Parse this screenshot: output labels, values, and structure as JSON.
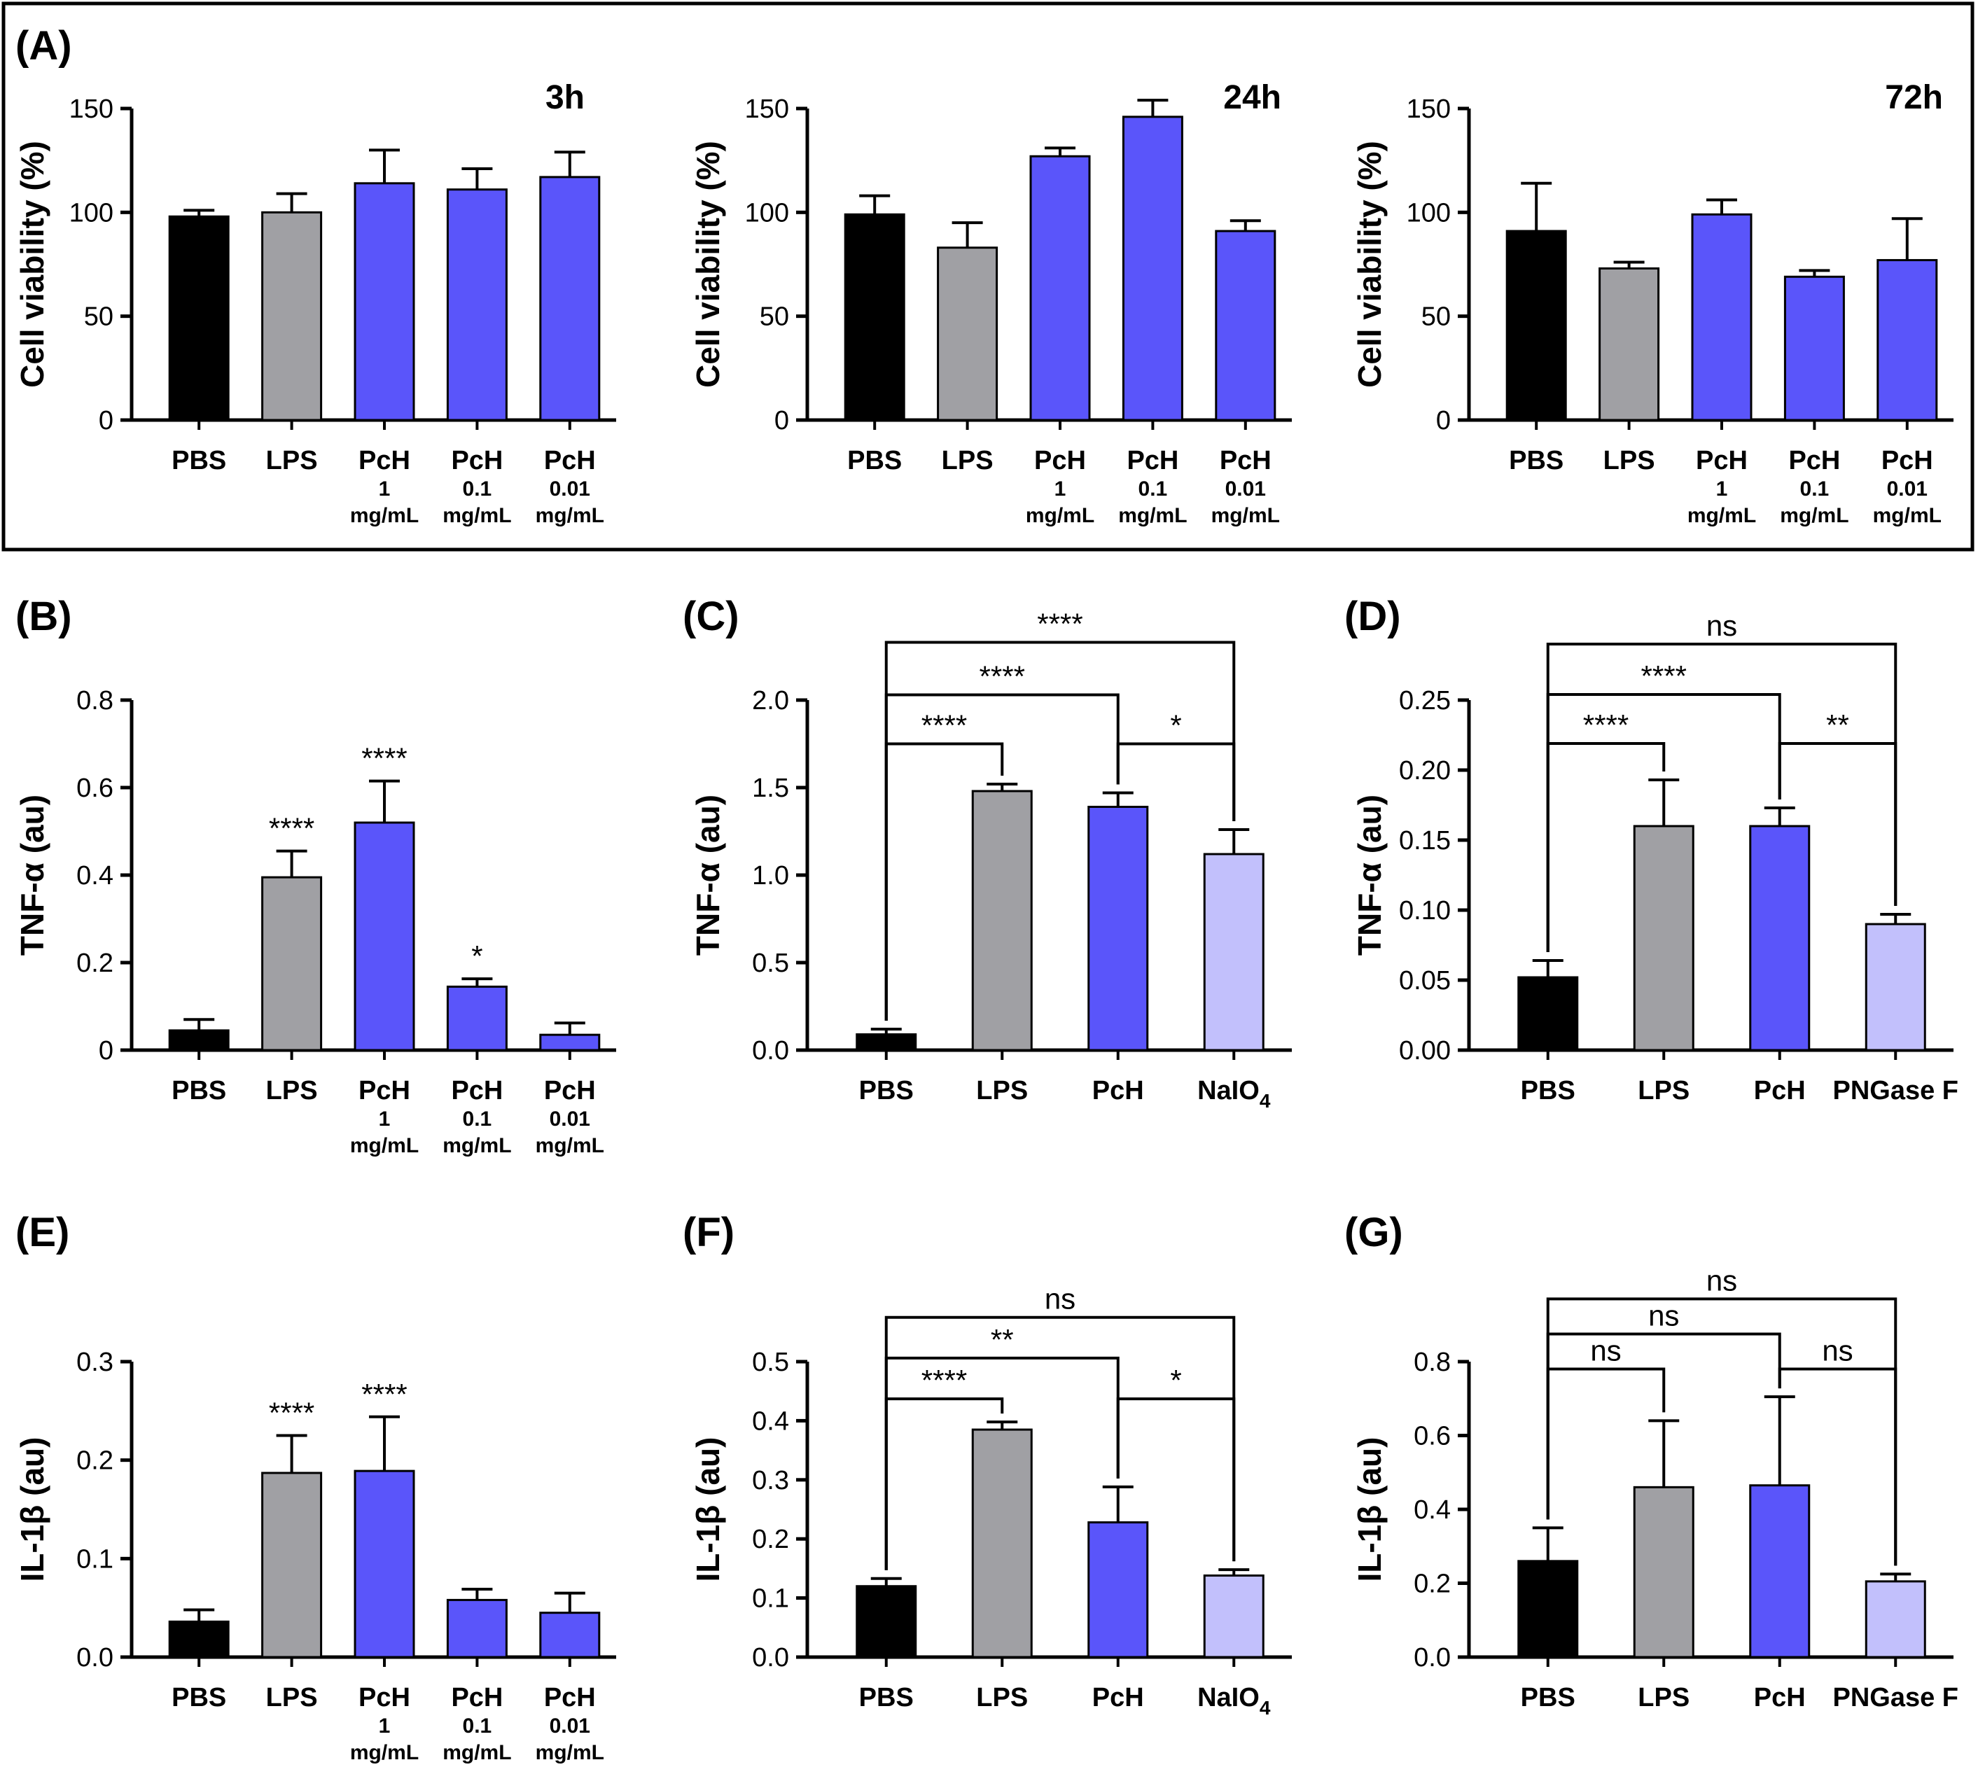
{
  "colors": {
    "PBS": "#000000",
    "LPS": "#a0a0a4",
    "PcH": "#5a55fa",
    "light": "#c2c0fc",
    "axis": "#000000"
  },
  "chart_data": [
    {
      "id": "A1",
      "panel_label": "(A)",
      "type": "bar",
      "time_label": "3h",
      "ylabel": "Cell viability (%)",
      "ylim": [
        0,
        150
      ],
      "yticks": [
        "0",
        "50",
        "100",
        "150"
      ],
      "categories": [
        {
          "lines": [
            "PBS"
          ],
          "sub": [
            "",
            ""
          ],
          "color": "PBS",
          "value": 98,
          "err": 3
        },
        {
          "lines": [
            "LPS"
          ],
          "sub": [
            "",
            ""
          ],
          "color": "LPS",
          "value": 100,
          "err": 9
        },
        {
          "lines": [
            "PcH"
          ],
          "sub": [
            "1",
            "mg/mL"
          ],
          "color": "PcH",
          "value": 114,
          "err": 16
        },
        {
          "lines": [
            "PcH"
          ],
          "sub": [
            "0.1",
            "mg/mL"
          ],
          "color": "PcH",
          "value": 111,
          "err": 10
        },
        {
          "lines": [
            "PcH"
          ],
          "sub": [
            "0.01",
            "mg/mL"
          ],
          "color": "PcH",
          "value": 117,
          "err": 12
        }
      ],
      "stars": [],
      "brackets": []
    },
    {
      "id": "A2",
      "panel_label": "",
      "type": "bar",
      "time_label": "24h",
      "ylabel": "Cell viability (%)",
      "ylim": [
        0,
        150
      ],
      "yticks": [
        "0",
        "50",
        "100",
        "150"
      ],
      "categories": [
        {
          "lines": [
            "PBS"
          ],
          "sub": [
            "",
            ""
          ],
          "color": "PBS",
          "value": 99,
          "err": 9
        },
        {
          "lines": [
            "LPS"
          ],
          "sub": [
            "",
            ""
          ],
          "color": "LPS",
          "value": 83,
          "err": 12
        },
        {
          "lines": [
            "PcH"
          ],
          "sub": [
            "1",
            "mg/mL"
          ],
          "color": "PcH",
          "value": 127,
          "err": 4
        },
        {
          "lines": [
            "PcH"
          ],
          "sub": [
            "0.1",
            "mg/mL"
          ],
          "color": "PcH",
          "value": 146,
          "err": 8
        },
        {
          "lines": [
            "PcH"
          ],
          "sub": [
            "0.01",
            "mg/mL"
          ],
          "color": "PcH",
          "value": 91,
          "err": 5
        }
      ],
      "stars": [],
      "brackets": []
    },
    {
      "id": "A3",
      "panel_label": "",
      "type": "bar",
      "time_label": "72h",
      "ylabel": "Cell viability (%)",
      "ylim": [
        0,
        150
      ],
      "yticks": [
        "0",
        "50",
        "100",
        "150"
      ],
      "categories": [
        {
          "lines": [
            "PBS"
          ],
          "sub": [
            "",
            ""
          ],
          "color": "PBS",
          "value": 91,
          "err": 23
        },
        {
          "lines": [
            "LPS"
          ],
          "sub": [
            "",
            ""
          ],
          "color": "LPS",
          "value": 73,
          "err": 3
        },
        {
          "lines": [
            "PcH"
          ],
          "sub": [
            "1",
            "mg/mL"
          ],
          "color": "PcH",
          "value": 99,
          "err": 7
        },
        {
          "lines": [
            "PcH"
          ],
          "sub": [
            "0.1",
            "mg/mL"
          ],
          "color": "PcH",
          "value": 69,
          "err": 3
        },
        {
          "lines": [
            "PcH"
          ],
          "sub": [
            "0.01",
            "mg/mL"
          ],
          "color": "PcH",
          "value": 77,
          "err": 20
        }
      ],
      "stars": [],
      "brackets": []
    },
    {
      "id": "B",
      "panel_label": "(B)",
      "type": "bar",
      "time_label": "",
      "ylabel": "TNF-α (au)",
      "ylim": [
        0,
        0.8
      ],
      "yticks": [
        "0",
        "0.2",
        "0.4",
        "0.6",
        "0.8"
      ],
      "categories": [
        {
          "lines": [
            "PBS"
          ],
          "sub": [
            "",
            ""
          ],
          "color": "PBS",
          "value": 0.045,
          "err": 0.025
        },
        {
          "lines": [
            "LPS"
          ],
          "sub": [
            "",
            ""
          ],
          "color": "LPS",
          "value": 0.395,
          "err": 0.06
        },
        {
          "lines": [
            "PcH"
          ],
          "sub": [
            "1",
            "mg/mL"
          ],
          "color": "PcH",
          "value": 0.52,
          "err": 0.095
        },
        {
          "lines": [
            "PcH"
          ],
          "sub": [
            "0.1",
            "mg/mL"
          ],
          "color": "PcH",
          "value": 0.145,
          "err": 0.018
        },
        {
          "lines": [
            "PcH"
          ],
          "sub": [
            "0.01",
            "mg/mL"
          ],
          "color": "PcH",
          "value": 0.035,
          "err": 0.027
        }
      ],
      "stars": [
        {
          "bar": 1,
          "text": "****"
        },
        {
          "bar": 2,
          "text": "****"
        },
        {
          "bar": 3,
          "text": "*"
        }
      ],
      "brackets": []
    },
    {
      "id": "C",
      "panel_label": "(C)",
      "type": "bar",
      "time_label": "",
      "ylabel": "TNF-α (au)",
      "ylim": [
        0,
        2.0
      ],
      "yticks": [
        "0.0",
        "0.5",
        "1.0",
        "1.5",
        "2.0"
      ],
      "categories": [
        {
          "lines": [
            "PBS"
          ],
          "sub": [
            "",
            ""
          ],
          "color": "PBS",
          "value": 0.09,
          "err": 0.03
        },
        {
          "lines": [
            "LPS"
          ],
          "sub": [
            "",
            ""
          ],
          "color": "LPS",
          "value": 1.48,
          "err": 0.04
        },
        {
          "lines": [
            "PcH"
          ],
          "sub": [
            "",
            ""
          ],
          "color": "PcH",
          "value": 1.39,
          "err": 0.08
        },
        {
          "lines": [
            "NaIO",
            "4"
          ],
          "sub": [
            "",
            ""
          ],
          "color": "light",
          "value": 1.12,
          "err": 0.14
        }
      ],
      "stars": [],
      "brackets": [
        {
          "from": 0,
          "to": 1,
          "text": "****",
          "level": 1.75
        },
        {
          "from": 2,
          "to": 3,
          "text": "*",
          "level": 1.75
        },
        {
          "from": 0,
          "to": 2,
          "text": "****",
          "level": 2.03
        },
        {
          "from": 0,
          "to": 3,
          "text": "****",
          "level": 2.33
        }
      ]
    },
    {
      "id": "D",
      "panel_label": "(D)",
      "type": "bar",
      "time_label": "",
      "ylabel": "TNF-α (au)",
      "ylim": [
        0,
        0.25
      ],
      "yticks": [
        "0.00",
        "0.05",
        "0.10",
        "0.15",
        "0.20",
        "0.25"
      ],
      "categories": [
        {
          "lines": [
            "PBS"
          ],
          "sub": [
            "",
            ""
          ],
          "color": "PBS",
          "value": 0.052,
          "err": 0.012
        },
        {
          "lines": [
            "LPS"
          ],
          "sub": [
            "",
            ""
          ],
          "color": "LPS",
          "value": 0.16,
          "err": 0.033
        },
        {
          "lines": [
            "PcH"
          ],
          "sub": [
            "",
            ""
          ],
          "color": "PcH",
          "value": 0.16,
          "err": 0.013
        },
        {
          "lines": [
            "PNGase F"
          ],
          "sub": [
            "",
            ""
          ],
          "color": "light",
          "value": 0.09,
          "err": 0.007
        }
      ],
      "stars": [],
      "brackets": [
        {
          "from": 0,
          "to": 1,
          "text": "****",
          "level": 0.219
        },
        {
          "from": 2,
          "to": 3,
          "text": "**",
          "level": 0.219
        },
        {
          "from": 0,
          "to": 2,
          "text": "****",
          "level": 0.254
        },
        {
          "from": 0,
          "to": 3,
          "text": "ns",
          "level": 0.29
        }
      ]
    },
    {
      "id": "E",
      "panel_label": "(E)",
      "type": "bar",
      "time_label": "",
      "ylabel": "IL-1β (au)",
      "ylim": [
        0,
        0.3
      ],
      "yticks": [
        "0.0",
        "0.1",
        "0.2",
        "0.3"
      ],
      "categories": [
        {
          "lines": [
            "PBS"
          ],
          "sub": [
            "",
            ""
          ],
          "color": "PBS",
          "value": 0.036,
          "err": 0.012
        },
        {
          "lines": [
            "LPS"
          ],
          "sub": [
            "",
            ""
          ],
          "color": "LPS",
          "value": 0.187,
          "err": 0.038
        },
        {
          "lines": [
            "PcH"
          ],
          "sub": [
            "1",
            "mg/mL"
          ],
          "color": "PcH",
          "value": 0.189,
          "err": 0.055
        },
        {
          "lines": [
            "PcH"
          ],
          "sub": [
            "0.1",
            "mg/mL"
          ],
          "color": "PcH",
          "value": 0.058,
          "err": 0.011
        },
        {
          "lines": [
            "PcH"
          ],
          "sub": [
            "0.01",
            "mg/mL"
          ],
          "color": "PcH",
          "value": 0.045,
          "err": 0.02
        }
      ],
      "stars": [
        {
          "bar": 1,
          "text": "****"
        },
        {
          "bar": 2,
          "text": "****"
        }
      ],
      "brackets": []
    },
    {
      "id": "F",
      "panel_label": "(F)",
      "type": "bar",
      "time_label": "",
      "ylabel": "IL-1β (au)",
      "ylim": [
        0,
        0.5
      ],
      "yticks": [
        "0.0",
        "0.1",
        "0.2",
        "0.3",
        "0.4",
        "0.5"
      ],
      "categories": [
        {
          "lines": [
            "PBS"
          ],
          "sub": [
            "",
            ""
          ],
          "color": "PBS",
          "value": 0.12,
          "err": 0.013
        },
        {
          "lines": [
            "LPS"
          ],
          "sub": [
            "",
            ""
          ],
          "color": "LPS",
          "value": 0.385,
          "err": 0.013
        },
        {
          "lines": [
            "PcH"
          ],
          "sub": [
            "",
            ""
          ],
          "color": "PcH",
          "value": 0.228,
          "err": 0.06
        },
        {
          "lines": [
            "NaIO",
            "4"
          ],
          "sub": [
            "",
            ""
          ],
          "color": "light",
          "value": 0.138,
          "err": 0.01
        }
      ],
      "stars": [],
      "brackets": [
        {
          "from": 0,
          "to": 1,
          "text": "****",
          "level": 0.437
        },
        {
          "from": 2,
          "to": 3,
          "text": "*",
          "level": 0.437
        },
        {
          "from": 0,
          "to": 2,
          "text": "**",
          "level": 0.506
        },
        {
          "from": 0,
          "to": 3,
          "text": "ns",
          "level": 0.575
        }
      ]
    },
    {
      "id": "G",
      "panel_label": "(G)",
      "type": "bar",
      "time_label": "",
      "ylabel": "IL-1β (au)",
      "ylim": [
        0,
        0.8
      ],
      "yticks": [
        "0.0",
        "0.2",
        "0.4",
        "0.6",
        "0.8"
      ],
      "categories": [
        {
          "lines": [
            "PBS"
          ],
          "sub": [
            "",
            ""
          ],
          "color": "PBS",
          "value": 0.26,
          "err": 0.09
        },
        {
          "lines": [
            "LPS"
          ],
          "sub": [
            "",
            ""
          ],
          "color": "LPS",
          "value": 0.46,
          "err": 0.18
        },
        {
          "lines": [
            "PcH"
          ],
          "sub": [
            "",
            ""
          ],
          "color": "PcH",
          "value": 0.465,
          "err": 0.24
        },
        {
          "lines": [
            "PNGase F"
          ],
          "sub": [
            "",
            ""
          ],
          "color": "light",
          "value": 0.205,
          "err": 0.02
        }
      ],
      "stars": [],
      "brackets": [
        {
          "from": 0,
          "to": 1,
          "text": "ns",
          "level": 0.78
        },
        {
          "from": 2,
          "to": 3,
          "text": "ns",
          "level": 0.78
        },
        {
          "from": 0,
          "to": 2,
          "text": "ns",
          "level": 0.875
        },
        {
          "from": 0,
          "to": 3,
          "text": "ns",
          "level": 0.97
        }
      ]
    }
  ]
}
